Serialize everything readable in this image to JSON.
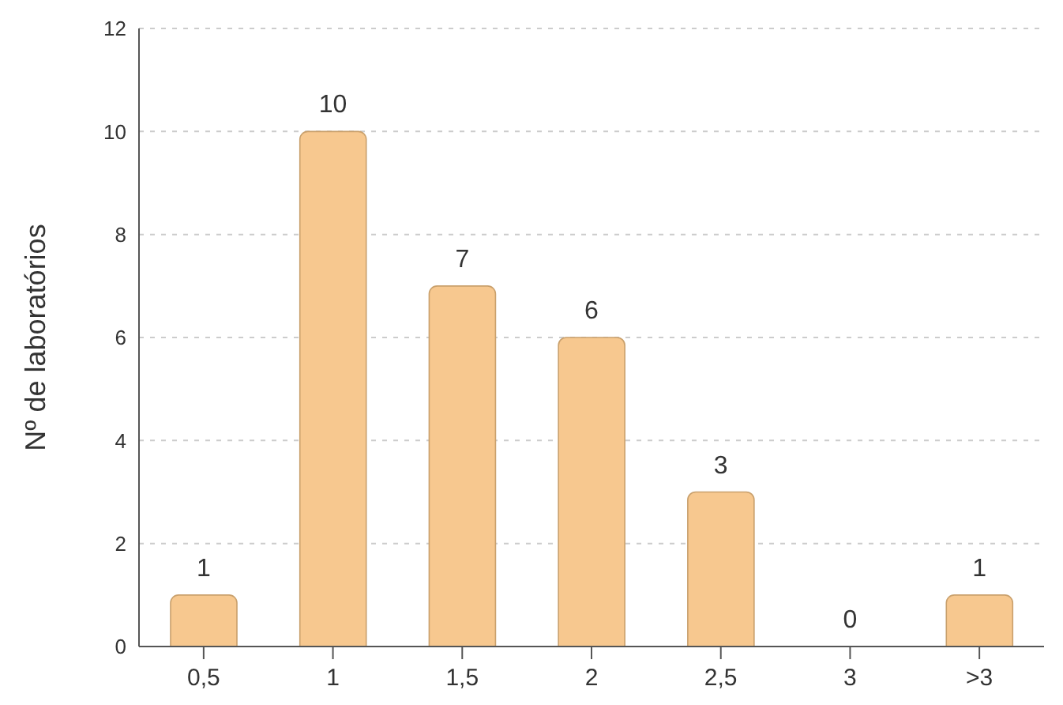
{
  "chart_data": {
    "type": "bar",
    "ylabel": "Nº de laboratórios",
    "categories": [
      "0,5",
      "1",
      "1,5",
      "2",
      "2,5",
      "3",
      ">3"
    ],
    "values": [
      1,
      10,
      7,
      6,
      3,
      0,
      1
    ],
    "color": "#f7c88f",
    "ylim": [
      0,
      12
    ],
    "yticks": [
      0,
      2,
      4,
      6,
      8,
      10,
      12
    ],
    "grid": "y",
    "data_labels": true
  }
}
